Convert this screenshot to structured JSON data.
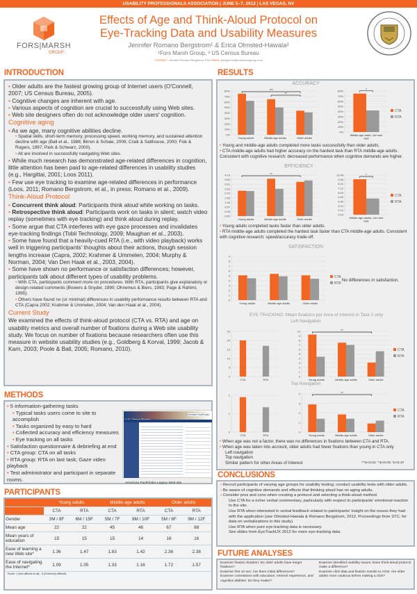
{
  "header": {
    "band": "USABILITY PROFESSIONALS ASSOCIATION | JUNE 5–7, 2012 | LAS VEGAS, NV",
    "title_line1": "Effects of Age and Think-Aloud Protocol on",
    "title_line2": "Eye-Tracking Data and Usability Measures",
    "authors": "Jennifer Romano Bergstrom¹ & Erica Olmsted-Hawala²",
    "affiliations": "¹Fors Marsh Group, ² US Census Bureau",
    "contact_label": "CONTACT:",
    "contact_name": "Jennifer Romano Bergstrom, PhD",
    "email_label": "EMAIL:",
    "email": "jbergstrom@forsmarshgroup.com",
    "logo_line1": "FORS|MARSH",
    "logo_line2": "GROUP",
    "seal_text": "U.S. DEPARTMENT OF COMMERCE · BUREAU OF THE CENSUS"
  },
  "colors": {
    "accent": "#f26522",
    "cta": "#f26522",
    "rta": "#999999",
    "box_border": "#a9b4bf"
  },
  "intro": {
    "heading": "INTRODUCTION",
    "bullets": [
      "Older adults are the fastest growing group of Internet users (O'Connell, 2007; US Census Bureau, 2005).",
      "Cognitive changes are inherent with age.",
      "Various aspects of cognition are crucial to successfully using Web sites.",
      "Web site designers often do not acknowledge older users' cognition."
    ],
    "cog_heading": "Cognitive aging",
    "cog1": "As we age, many cognitive abilities decline.",
    "cog_sub": [
      "Spatial skills, short-term memory, processing speed, working memory, and sustained attention decline with age (Ball et al., 1988; Birren & Schaie, 2006; Craik & Salthouse, 2000; Fisk & Rogers, 1997; Park & Schwarz, 2000).",
      "All are involved in successfully navigating Web sites."
    ],
    "cog2": "While much research has demonstrated age-related differences in cognition, little attention has been paid to age-related differences in usability studies (e.g., Hargittai, 2001; Loos 2011).",
    "cog3": "Few use eye tracking to examine age-related differences in performance (Loos, 2011; Romano Bergstrom, et al., in press; Romano et al., 2009).",
    "ta_heading": "Think-Aloud Protocol",
    "ta1_label": "Concurrent think aloud",
    "ta1": ": Participants think aloud while working on tasks.",
    "ta2_label": "Retrospective think aloud",
    "ta2": ": Participants work on tasks in silent; watch video replay (sometimes with eye tracking) and think aloud during replay.",
    "ta3": "Some argue that CTA interferes with eye gaze processes and invalidates eye-tracking findings (Tobii Technology, 2009; Maughan et al., 2003).",
    "ta4": "Some have found that a heavily-cued RTA (i.e., with video playback) works well in triggering participants' thoughts about their actions, though session lengths increase (Capra, 2002; Krahmer & Ummelen, 2004; Murphy & Norman, 2004; Van Den Haak et al., 2003, 2004).",
    "ta5": "Some have shown no performance or satisfaction differences; however, participants talk about different types of usability problems.",
    "ta_sub": [
      "With CTA, participants comment more on procedures. With RTA, participants give explanatory or design-related comments (Bowers & Snyder, 1990; Ohnemus & Biers, 1993; Page & Rahimi, 1995).",
      "Others have found no (or minimal) differences in usability performance results between RTA and CTA (Capra 2002; Krahmer & Ummelen, 2004; Van den Haak et al., 2004)."
    ],
    "cs_heading": "Current Study",
    "cs": "We examined the effects of think-aloud protocol (CTA vs. RTA) and age on usability metrics and overall number of fixations during a Web site usability study.  We focus on number of fixations because researchers often use this measure in website usability studies (e.g., Goldberg & Korval, 1999; Jacob & Karn, 2003; Poole & Ball, 2005; Romano, 2010)."
  },
  "methods": {
    "heading": "METHODS",
    "items": [
      {
        "t": "5 information-gathering tasks",
        "sub": false
      },
      {
        "t": "Typical tasks users come to site to accomplish",
        "sub": true
      },
      {
        "t": "Tasks organized by easy to hard",
        "sub": true
      },
      {
        "t": "Collected accuracy and efficiency measures",
        "sub": true
      },
      {
        "t": "Eye tracking on all tasks",
        "sub": true
      },
      {
        "t": "Satisfaction questionnaire & debriefing at end",
        "sub": false
      },
      {
        "t": "CTA group: CTA on all tasks",
        "sub": false
      },
      {
        "t": "RTA group: RTA on last task; Gaze video playback",
        "sub": false
      },
      {
        "t": "Test administrator and participant in separate rooms.",
        "sub": false
      }
    ],
    "caption": "American FactFinder Legacy Web site",
    "site_title": "U.S. Census Bureau",
    "site_brand": "American FactFinder"
  },
  "participants": {
    "heading": "PARTICIPANTS",
    "groups": [
      "Young adults",
      "Middle-age adults",
      "Older adults"
    ],
    "subcols": [
      "CTA",
      "RTA",
      "CTA",
      "RTA",
      "CTA",
      "RTA"
    ],
    "rows": [
      [
        "Gender",
        "3M / 8F",
        "6M / 15F",
        "5M / 7F",
        "9M / 10F",
        "5M / 6F",
        "9M / 12F"
      ],
      [
        "Mean age",
        "22",
        "22",
        "45",
        "46",
        "67",
        "68"
      ],
      [
        "Mean years of education",
        "15",
        "15",
        "15",
        "14",
        "16",
        "16"
      ],
      [
        "Ease of learning a new Web site*",
        "1.36",
        "1.47",
        "1.83",
        "1.42",
        "2.36",
        "2.38"
      ],
      [
        "Ease of navigating the Internet*",
        "1.09",
        "1.05",
        "1.33",
        "1.16",
        "1.72",
        "1.57"
      ]
    ],
    "footnote": "*Scale: 1 (Not difficult at all) - 5 (Extremely difficult)."
  },
  "results": {
    "heading": "RESULTS",
    "accuracy_title": "ACCURACY",
    "efficiency_title": "EFFICIENCY",
    "satisfaction_title": "SATISFACTION",
    "eyetracking_title": "EYE TRACKING: Mean fixations per Area of Interest in Task 1 only",
    "left_nav_title": "Left Navigation",
    "top_nav_title": "Top Navigation",
    "acc_notes": [
      "Young and middle-age adults completed more tasks successfully than older adults.",
      "CTA middle-age adults had higher accuracy on the hardest task than RTA middle-age adults. Consistent with cognitive research: decreased performance when cognitive demands are higher."
    ],
    "eff_notes": [
      "Young adults completed tasks faster than older adults.",
      "RTA middle-age adults completed the hardest task faster than CTA middle-age adults. Consistent with cognitive research: speed/accuracy trade-off."
    ],
    "sat_note": "No differences in satisfaction.",
    "et_notes": [
      "When age was not a factor, there was no differences in fixations between CTA and RTA.",
      "When age was taken into account, older adults had fewer fixations than young in CTA only"
    ],
    "et_sub": [
      "Left navigation",
      "Top navigation",
      "Similar pattern for other Areas of Interest"
    ],
    "sig_note": "***p<0.01; **p<0.05; *p<0.10",
    "legend": [
      "CTA",
      "RTA"
    ]
  },
  "chart_data": [
    {
      "id": "accuracy",
      "type": "bar",
      "title": "ACCURACY",
      "categories": [
        "Young adults",
        "Middle-age adults",
        "Older adults"
      ],
      "series": [
        {
          "name": "CTA",
          "values": [
            75,
            65,
            44
          ]
        },
        {
          "name": "RTA",
          "values": [
            62,
            50,
            41
          ]
        }
      ],
      "ylim": [
        0,
        80
      ],
      "yticks": [
        "0%",
        "10%",
        "20%",
        "30%",
        "40%",
        "50%",
        "60%",
        "70%",
        "80%"
      ],
      "unit": "%",
      "significance": [
        {
          "from": 0,
          "to": 2,
          "label": "***"
        },
        {
          "from": 1,
          "to": 2,
          "label": "**"
        }
      ],
      "grid": true
    },
    {
      "id": "accuracy_hard",
      "type": "bar",
      "categories": [
        "Middle-age adult--1st hard task"
      ],
      "series": [
        {
          "name": "CTA",
          "values": [
            75
          ]
        },
        {
          "name": "RTA",
          "values": [
            42
          ]
        }
      ],
      "ylim": [
        0,
        80
      ],
      "yticks": [
        "0%",
        "10%",
        "20%",
        "30%",
        "40%",
        "50%",
        "60%",
        "70%",
        "80%"
      ],
      "significance": [
        {
          "bars": true,
          "label": "*"
        }
      ],
      "legend": "right",
      "grid": true
    },
    {
      "id": "efficiency",
      "type": "bar",
      "title": "EFFICIENCY",
      "categories": [
        "Young adults",
        "Middle-age adults",
        "Older adults"
      ],
      "series": [
        {
          "name": "CTA",
          "values": [
            "2:40",
            "3:56",
            "3:36"
          ]
        },
        {
          "name": "RTA",
          "values": [
            "2:38",
            "2:52",
            "3:45"
          ]
        }
      ],
      "ylim": [
        "0:00",
        "4:19"
      ],
      "yticks": [
        "0:00",
        "0:28",
        "0:57",
        "1:26",
        "1:55",
        "2:24",
        "2:52",
        "3:21",
        "3:50",
        "4:19"
      ],
      "significance": [
        {
          "from": 0,
          "to": 2,
          "label": "**"
        }
      ],
      "grid": true
    },
    {
      "id": "efficiency_hard",
      "type": "bar",
      "categories": [
        "Middle-age adults--1st hard task"
      ],
      "series": [
        {
          "name": "CTA",
          "values": [
            "9:40"
          ]
        },
        {
          "name": "RTA",
          "values": [
            "4:25"
          ]
        }
      ],
      "ylim": [
        "0:00",
        "10:48"
      ],
      "yticks": [
        "0:00",
        "1:12",
        "2:24",
        "3:36",
        "4:48",
        "6:00",
        "7:12",
        "8:24",
        "9:36",
        "10:48"
      ],
      "significance": [
        {
          "bars": true,
          "label": "*"
        }
      ],
      "legend": "right",
      "grid": true
    },
    {
      "id": "satisfaction",
      "type": "bar",
      "title": "SATISFACTION",
      "categories": [
        "Young adults",
        "Middle-age adults",
        "Older adults"
      ],
      "series": [
        {
          "name": "CTA",
          "values": [
            5.1,
            5.4,
            5.1
          ]
        },
        {
          "name": "RTA",
          "values": [
            4.5,
            4.9,
            4.4
          ]
        }
      ],
      "ylim": [
        0,
        9
      ],
      "yticks": [
        "0",
        "1",
        "2",
        "3",
        "4",
        "5",
        "6",
        "7",
        "8",
        "9"
      ],
      "legend": "right",
      "grid": true
    },
    {
      "id": "fixations_left_overall",
      "type": "bar",
      "categories": [
        "CTA",
        "RTA"
      ],
      "series": [
        {
          "values": [
            20,
            17
          ]
        }
      ],
      "ylim": [
        0,
        25
      ],
      "yticks": [
        "0",
        "5",
        "10",
        "15",
        "20",
        "25"
      ],
      "grid": true
    },
    {
      "id": "fixations_left_nav",
      "type": "bar",
      "title": "Left Navigation",
      "categories": [
        "Young adults",
        "Middle-age adults",
        "Older adults"
      ],
      "series": [
        {
          "name": "CTA",
          "values": [
            9.3,
            7.5,
            3.1
          ]
        },
        {
          "name": "RTA",
          "values": [
            4.4,
            7.0,
            5.6
          ]
        }
      ],
      "ylim": [
        0,
        10
      ],
      "yticks": [
        "0",
        "1",
        "2",
        "3",
        "4",
        "5",
        "6",
        "7",
        "8",
        "9",
        "10"
      ],
      "significance": [
        {
          "from": 0,
          "to": 2,
          "label": "**"
        }
      ],
      "legend": "right",
      "grid": true
    },
    {
      "id": "fixations_top_overall",
      "type": "bar",
      "categories": [
        "CTA",
        "RTA"
      ],
      "series": [
        {
          "values": [
            1.9,
            1.35
          ]
        }
      ],
      "ylim": [
        0,
        2
      ],
      "yticks": [
        "0",
        "1",
        "2"
      ],
      "grid": true
    },
    {
      "id": "fixations_top_nav",
      "type": "bar",
      "title": "Top Navigation",
      "categories": [
        "Young adults",
        "Middle-age adults",
        "Older adults"
      ],
      "series": [
        {
          "name": "CTA",
          "values": [
            2.9,
            1.85,
            0.9
          ]
        },
        {
          "name": "RTA",
          "values": [
            1.4,
            1.4,
            1.2
          ]
        }
      ],
      "ylim": [
        0,
        4
      ],
      "yticks": [
        "0",
        "1",
        "2",
        "3",
        "4"
      ],
      "significance": [
        {
          "from": 0,
          "to": 2,
          "label": "**"
        }
      ],
      "legend": "right",
      "grid": true
    }
  ],
  "conclusions": {
    "heading": "CONCLUSIONS",
    "items": [
      "Recruit participants of varying age groups for usability testing; conduct usability tests with older adults.",
      "Be aware of cognitive demands and effects that thinking aloud has on aging adults.",
      "Consider pros and cons when creating a protocol and selecting a think-aloud method."
    ],
    "sub": [
      "Use CTA for a richer verbal commentary, particularly with respect to participants' emotional reaction to the site.",
      "Use RTA when interested in verbal feedback related to participants' insight on the issues they had with the application (see Olmsted-Hawala & Romano Bergstrom, 2012, Proceedings from STC, for data on verbalizations in this study).",
      "Use RTA when pure eye-tracking data is necessary.",
      "See slides from EyeTrackUX 2012 for more eye-tracking data."
    ]
  },
  "future": {
    "heading": "FUTURE ANALYSES",
    "left": [
      "Examine fixation duration: Do older adults have longer fixations?",
      "Examine first 10 sec: Are there initial differences?",
      "Examine correlations with education, Internet experience, and cognitive abilities: Do they matter?"
    ],
    "right": [
      "Examine identified usability issues: Does think-aloud protocol make a difference?",
      "Examine click data and fixation revisits to AOIs: Are older adults more cautious before making a click?"
    ]
  }
}
